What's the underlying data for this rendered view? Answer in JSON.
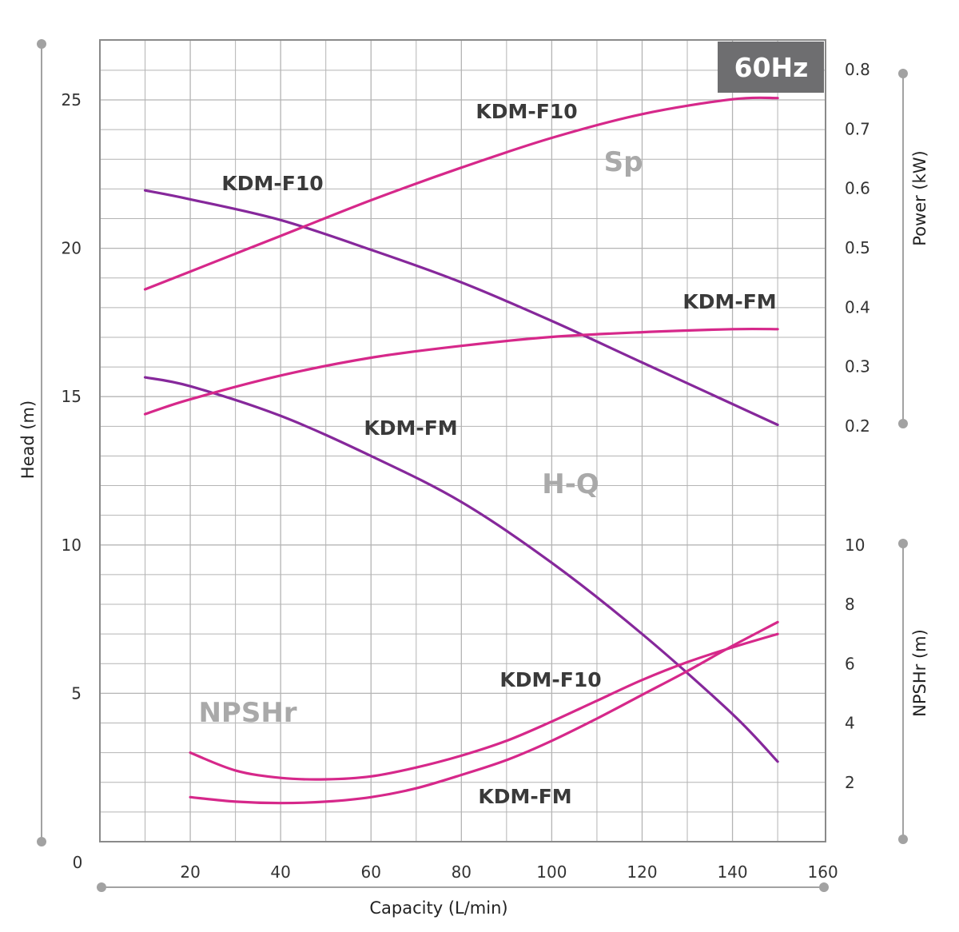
{
  "chart_data": {
    "type": "line",
    "badge": "60Hz",
    "xlabel": "Capacity (L/min)",
    "xlim": [
      0,
      160
    ],
    "x_ticks": [
      0,
      20,
      40,
      60,
      80,
      100,
      120,
      140,
      160
    ],
    "axes": {
      "head": {
        "label": "Head (m)",
        "lim": [
          0,
          27
        ],
        "ticks": [
          0,
          5,
          10,
          15,
          20,
          25
        ],
        "side": "left"
      },
      "power": {
        "label": "Power (kW)",
        "lim": [
          0.2,
          0.8
        ],
        "ticks": [
          0.2,
          0.3,
          0.4,
          0.5,
          0.6,
          0.7,
          0.8
        ],
        "side": "right",
        "ticks_text": [
          "0.2",
          "0.3",
          "0.4",
          "0.5",
          "0.6",
          "0.7",
          "0.8"
        ]
      },
      "npshr": {
        "label": "NPSHr (m)",
        "lim": [
          0,
          10
        ],
        "ticks": [
          2,
          4,
          6,
          8,
          10
        ],
        "side": "right"
      }
    },
    "group_labels": {
      "sp": "Sp",
      "hq": "H-Q",
      "npshr": "NPSHr"
    },
    "colors": {
      "hq": "#86289b",
      "power": "#d6288a",
      "npshr": "#d6288a",
      "badge": "#6e6e70",
      "grid": "#b4b4b4"
    },
    "series": [
      {
        "name": "KDM-F10",
        "group": "hq",
        "axis": "head",
        "x": [
          10,
          20,
          40,
          60,
          80,
          100,
          120,
          140,
          150
        ],
        "y": [
          21.95,
          21.65,
          20.95,
          19.95,
          18.85,
          17.55,
          16.15,
          14.75,
          14.05
        ]
      },
      {
        "name": "KDM-FM",
        "group": "hq",
        "axis": "head",
        "x": [
          10,
          20,
          40,
          60,
          80,
          100,
          120,
          140,
          150
        ],
        "y": [
          15.65,
          15.35,
          14.35,
          13.0,
          11.45,
          9.4,
          7.0,
          4.3,
          2.7
        ]
      },
      {
        "name": "KDM-F10",
        "group": "power",
        "axis": "power",
        "x": [
          10,
          20,
          40,
          60,
          80,
          100,
          120,
          140,
          150
        ],
        "y": [
          0.43,
          0.46,
          0.52,
          0.58,
          0.635,
          0.685,
          0.725,
          0.75,
          0.752
        ]
      },
      {
        "name": "KDM-FM",
        "group": "power",
        "axis": "power",
        "x": [
          10,
          20,
          40,
          60,
          80,
          100,
          120,
          140,
          150
        ],
        "y": [
          0.22,
          0.245,
          0.285,
          0.315,
          0.335,
          0.35,
          0.358,
          0.363,
          0.363
        ]
      },
      {
        "name": "KDM-F10",
        "group": "npshr",
        "axis": "npshr",
        "x": [
          20,
          30,
          40,
          50,
          60,
          70,
          80,
          90,
          100,
          110,
          120,
          130,
          140,
          150
        ],
        "y": [
          3.0,
          2.4,
          2.15,
          2.1,
          2.2,
          2.5,
          2.9,
          3.4,
          4.05,
          4.75,
          5.45,
          6.05,
          6.55,
          7.0
        ]
      },
      {
        "name": "KDM-FM",
        "group": "npshr",
        "axis": "npshr",
        "x": [
          20,
          30,
          40,
          50,
          60,
          70,
          80,
          90,
          100,
          110,
          120,
          130,
          140,
          150
        ],
        "y": [
          1.5,
          1.35,
          1.3,
          1.35,
          1.5,
          1.8,
          2.25,
          2.75,
          3.4,
          4.15,
          4.95,
          5.75,
          6.6,
          7.4
        ]
      }
    ]
  }
}
